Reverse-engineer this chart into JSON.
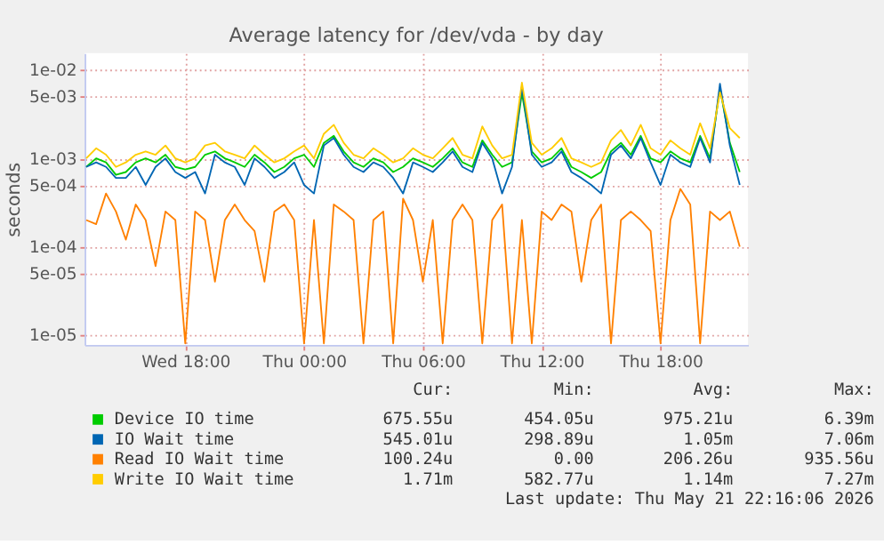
{
  "chart_data": {
    "type": "line",
    "title": "Average latency for /dev/vda - by day",
    "ylabel": "seconds",
    "log": "y",
    "grid": true,
    "legend": "bottom",
    "xlim": [
      "2026-05-20T12:55",
      "2026-05-21T22:25"
    ],
    "xticks": [
      {
        "value": "2026-05-20T18:00",
        "label": "Wed 18:00"
      },
      {
        "value": "2026-05-21T00:00",
        "label": "Thu 00:00"
      },
      {
        "value": "2026-05-21T06:00",
        "label": "Thu 06:00"
      },
      {
        "value": "2026-05-21T12:00",
        "label": "Thu 12:00"
      },
      {
        "value": "2026-05-21T18:00",
        "label": "Thu 18:00"
      }
    ],
    "ylim": [
      7.7e-06,
      0.0156
    ],
    "yticks": [
      {
        "value": 0.01,
        "label": "1e-02"
      },
      {
        "value": 0.005,
        "label": "5e-03"
      },
      {
        "value": 0.001,
        "label": "1e-03"
      },
      {
        "value": 0.0005,
        "label": "5e-04"
      },
      {
        "value": 0.0001,
        "label": "1e-04"
      },
      {
        "value": 5e-05,
        "label": "5e-05"
      },
      {
        "value": 1e-05,
        "label": "1e-05"
      }
    ],
    "x": [
      "2026-05-20T13:00",
      "2026-05-20T13:30",
      "2026-05-20T14:00",
      "2026-05-20T14:30",
      "2026-05-20T15:00",
      "2026-05-20T15:30",
      "2026-05-20T16:00",
      "2026-05-20T16:30",
      "2026-05-20T17:00",
      "2026-05-20T17:30",
      "2026-05-20T18:00",
      "2026-05-20T18:30",
      "2026-05-20T19:00",
      "2026-05-20T19:30",
      "2026-05-20T20:00",
      "2026-05-20T20:30",
      "2026-05-20T21:00",
      "2026-05-20T21:30",
      "2026-05-20T22:00",
      "2026-05-20T22:30",
      "2026-05-20T23:00",
      "2026-05-20T23:30",
      "2026-05-21T00:00",
      "2026-05-21T00:30",
      "2026-05-21T01:00",
      "2026-05-21T01:30",
      "2026-05-21T02:00",
      "2026-05-21T02:30",
      "2026-05-21T03:00",
      "2026-05-21T03:30",
      "2026-05-21T04:00",
      "2026-05-21T04:30",
      "2026-05-21T05:00",
      "2026-05-21T05:30",
      "2026-05-21T06:00",
      "2026-05-21T06:30",
      "2026-05-21T07:00",
      "2026-05-21T07:30",
      "2026-05-21T08:00",
      "2026-05-21T08:30",
      "2026-05-21T09:00",
      "2026-05-21T09:30",
      "2026-05-21T10:00",
      "2026-05-21T10:30",
      "2026-05-21T11:00",
      "2026-05-21T11:30",
      "2026-05-21T12:00",
      "2026-05-21T12:30",
      "2026-05-21T13:00",
      "2026-05-21T13:30",
      "2026-05-21T14:00",
      "2026-05-21T14:30",
      "2026-05-21T15:00",
      "2026-05-21T15:30",
      "2026-05-21T16:00",
      "2026-05-21T16:30",
      "2026-05-21T17:00",
      "2026-05-21T17:30",
      "2026-05-21T18:00",
      "2026-05-21T18:30",
      "2026-05-21T19:00",
      "2026-05-21T19:30",
      "2026-05-21T20:00",
      "2026-05-21T20:30",
      "2026-05-21T21:00",
      "2026-05-21T21:30",
      "2026-05-21T22:00"
    ],
    "series": [
      {
        "name": "Device IO time",
        "color": "#00cc00",
        "values": [
          0.0008,
          0.001,
          0.0009,
          0.00065,
          0.0007,
          0.0009,
          0.001,
          0.0009,
          0.0011,
          0.0008,
          0.00075,
          0.0008,
          0.0011,
          0.0012,
          0.001,
          0.0009,
          0.0008,
          0.0011,
          0.0009,
          0.0007,
          0.0008,
          0.001,
          0.0011,
          0.0008,
          0.0015,
          0.0018,
          0.0012,
          0.0009,
          0.0008,
          0.001,
          0.0009,
          0.0007,
          0.0008,
          0.001,
          0.0009,
          0.0008,
          0.001,
          0.0013,
          0.0009,
          0.0008,
          0.0016,
          0.0011,
          0.0008,
          0.0009,
          0.0055,
          0.0012,
          0.0009,
          0.001,
          0.0013,
          0.0008,
          0.0007,
          0.0006,
          0.0007,
          0.0012,
          0.0015,
          0.0011,
          0.0018,
          0.001,
          0.0009,
          0.0012,
          0.001,
          0.0009,
          0.0018,
          0.001,
          0.0063,
          0.0015,
          0.0007
        ]
      },
      {
        "name": "IO Wait time",
        "color": "#0066b3",
        "values": [
          0.0008,
          0.0009,
          0.0008,
          0.0006,
          0.0006,
          0.0008,
          0.0005,
          0.0008,
          0.001,
          0.0007,
          0.0006,
          0.0007,
          0.0004,
          0.0011,
          0.0009,
          0.0008,
          0.0005,
          0.001,
          0.0008,
          0.0006,
          0.0007,
          0.0009,
          0.0005,
          0.0004,
          0.0014,
          0.0017,
          0.0011,
          0.0008,
          0.0007,
          0.0009,
          0.0008,
          0.0006,
          0.0004,
          0.0009,
          0.0008,
          0.0007,
          0.0009,
          0.0012,
          0.0008,
          0.0007,
          0.0015,
          0.001,
          0.0004,
          0.0008,
          0.0065,
          0.0011,
          0.0008,
          0.0009,
          0.0012,
          0.0007,
          0.0006,
          0.0005,
          0.0004,
          0.0011,
          0.0014,
          0.001,
          0.0017,
          0.0009,
          0.0005,
          0.0011,
          0.0009,
          0.0008,
          0.0017,
          0.0009,
          0.007,
          0.0014,
          0.0005
        ]
      },
      {
        "name": "Read IO Wait time",
        "color": "#ff8000",
        "values": [
          0.0002,
          0.00018,
          0.0004,
          0.00025,
          0.00012,
          0.0003,
          0.0002,
          6e-05,
          0.00025,
          0.0002,
          8e-06,
          0.00025,
          0.0002,
          4e-05,
          0.0002,
          0.0003,
          0.0002,
          0.00015,
          4e-05,
          0.00025,
          0.0003,
          0.0002,
          8e-06,
          0.0002,
          8e-06,
          0.0003,
          0.00025,
          0.0002,
          8e-06,
          0.0002,
          0.00025,
          8e-06,
          0.00035,
          0.0002,
          4e-05,
          0.0002,
          8e-06,
          0.0002,
          0.0003,
          0.0002,
          8e-06,
          0.0002,
          0.0003,
          8e-06,
          0.0002,
          8e-06,
          0.00025,
          0.0002,
          0.0003,
          0.00025,
          4e-05,
          0.0002,
          0.0003,
          8e-06,
          0.0002,
          0.00025,
          0.0002,
          0.00015,
          8e-06,
          0.0002,
          0.00045,
          0.0003,
          8e-06,
          0.00025,
          0.0002,
          0.00025,
          0.0001
        ]
      },
      {
        "name": "Write IO Wait time",
        "color": "#ffcc00",
        "values": [
          0.001,
          0.0013,
          0.0011,
          0.0008,
          0.0009,
          0.0011,
          0.0012,
          0.0011,
          0.0014,
          0.001,
          0.0009,
          0.001,
          0.0014,
          0.0015,
          0.0012,
          0.0011,
          0.001,
          0.0014,
          0.0011,
          0.0009,
          0.001,
          0.0012,
          0.0014,
          0.001,
          0.0019,
          0.0024,
          0.0015,
          0.0011,
          0.001,
          0.0013,
          0.0011,
          0.0009,
          0.001,
          0.0013,
          0.0011,
          0.001,
          0.0013,
          0.0017,
          0.0011,
          0.001,
          0.0023,
          0.0014,
          0.001,
          0.0011,
          0.0072,
          0.0015,
          0.0011,
          0.0013,
          0.0017,
          0.001,
          0.0009,
          0.0008,
          0.0009,
          0.0016,
          0.0021,
          0.0014,
          0.0024,
          0.0013,
          0.0011,
          0.0016,
          0.0013,
          0.0011,
          0.0025,
          0.0013,
          0.0056,
          0.0022,
          0.0017
        ]
      }
    ],
    "annotations": [
      "Cur:",
      "Min:",
      "Avg:",
      "Max:",
      "675.55u",
      "454.05u",
      "975.21u",
      "6.39m",
      "545.01u",
      "298.89u",
      "1.05m",
      "7.06m",
      "100.24u",
      "0.00",
      "206.26u",
      "935.56u",
      "1.71m",
      "582.77u",
      "1.14m",
      "7.27m",
      "Last update: Thu May 21 22:16:06 2026"
    ]
  }
}
